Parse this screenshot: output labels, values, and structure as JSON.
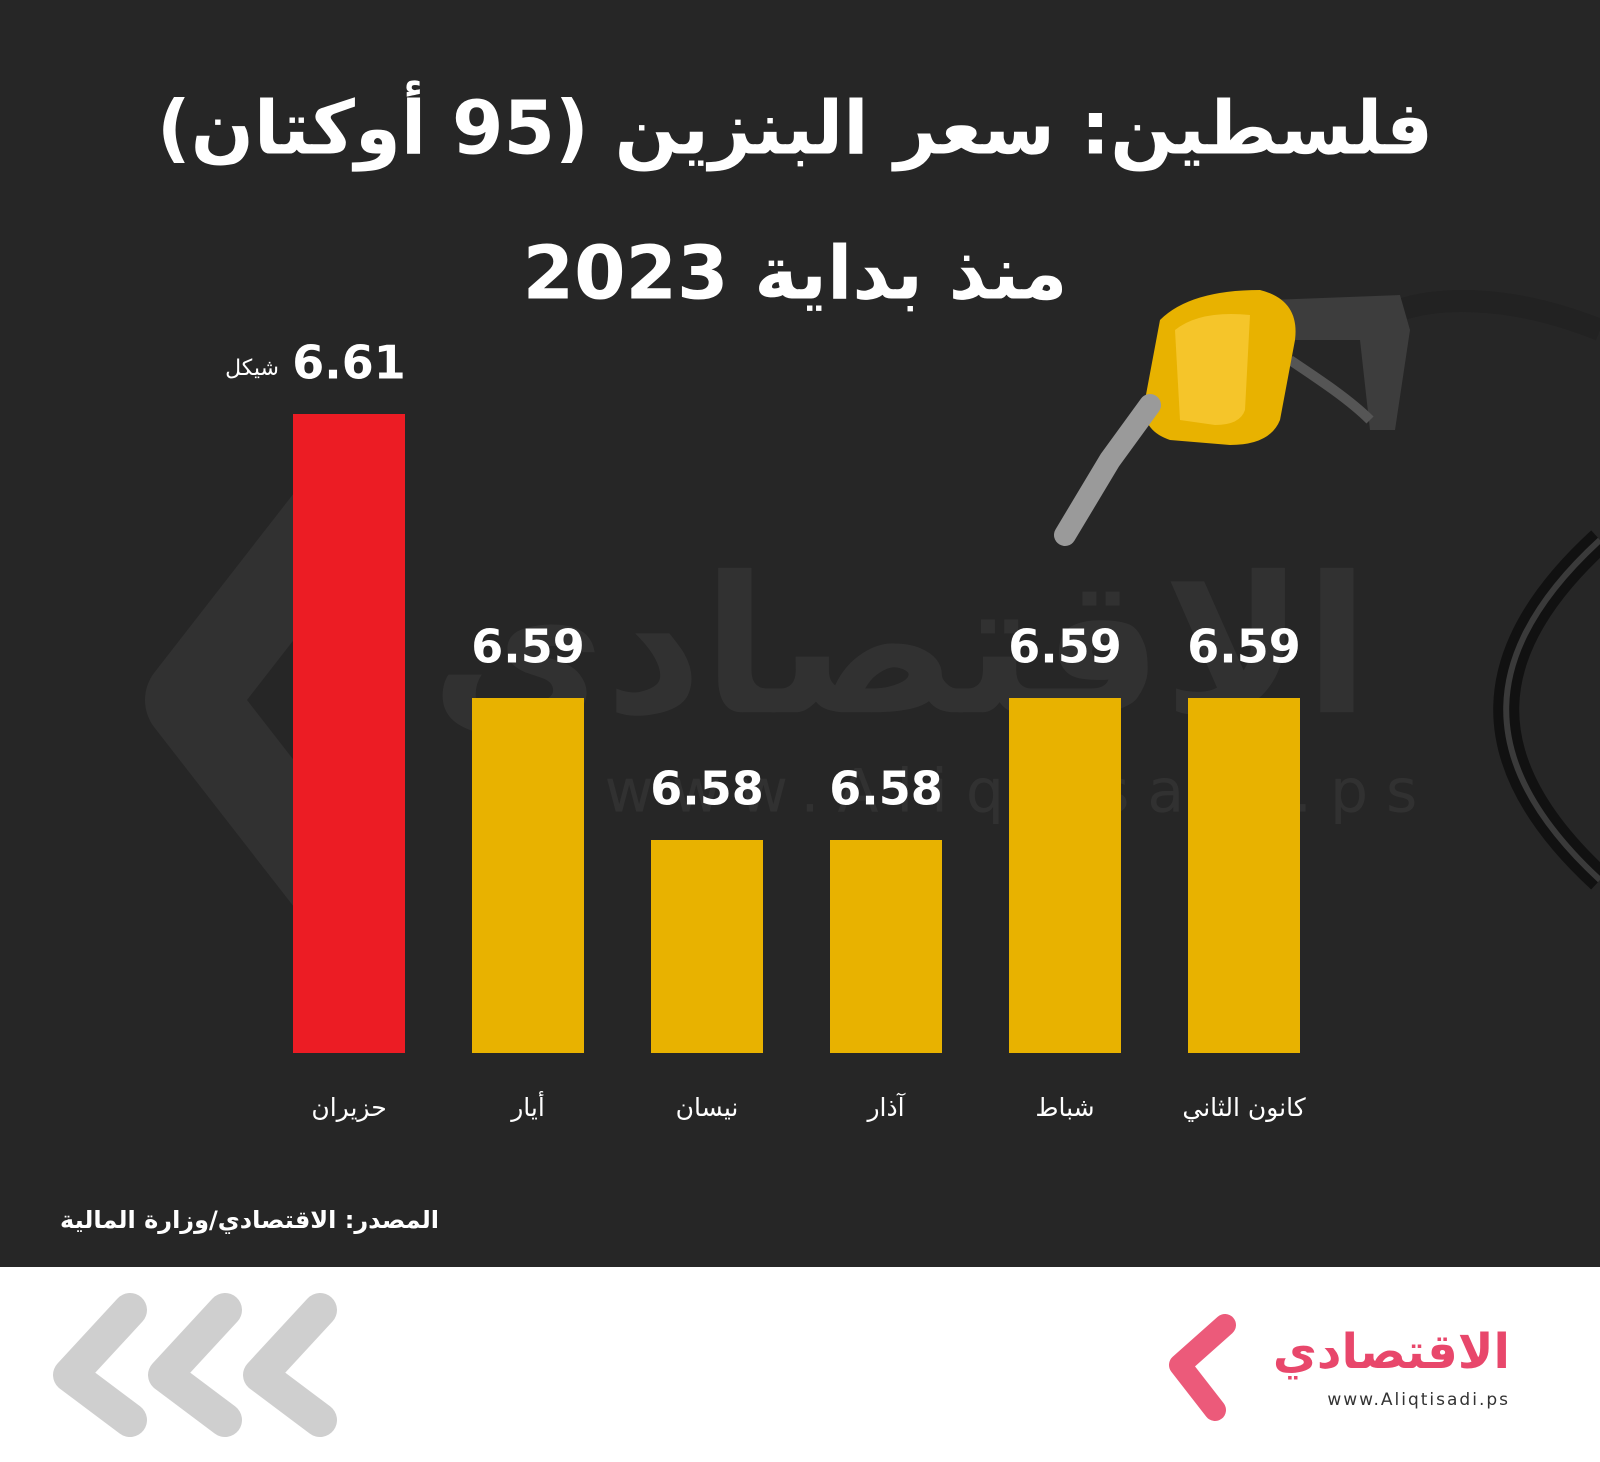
{
  "chart_data": {
    "type": "bar",
    "title": "فلسطين: سعر البنزين (95 أوكتان)",
    "subtitle": "منذ بداية 2023",
    "categories": [
      "كانون الثاني",
      "شباط",
      "آذار",
      "نيسان",
      "أيار",
      "حزيران"
    ],
    "values": [
      6.59,
      6.59,
      6.58,
      6.58,
      6.59,
      6.61
    ],
    "colors": [
      "#e8b200",
      "#e8b200",
      "#e8b200",
      "#e8b200",
      "#e8b200",
      "#ec1c24"
    ],
    "unit_label": "شيكل",
    "ylim": [
      6.565,
      6.615
    ],
    "grid": false,
    "source": "المصدر: الاقتصادي/وزارة المالية"
  },
  "logo": {
    "name": "الاقتصادي",
    "url": "www.Aliqtisadi.ps"
  }
}
